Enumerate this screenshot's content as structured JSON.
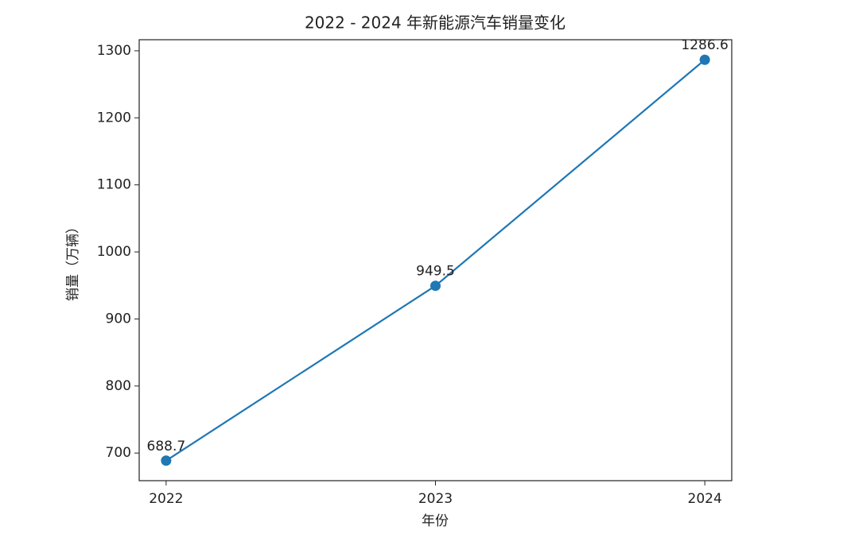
{
  "chart_data": {
    "type": "line",
    "title": "2022 - 2024 年新能源汽车销量变化",
    "x_label": "年份",
    "y_label": "销量（万辆）",
    "x": [
      2022,
      2023,
      2024
    ],
    "series": [
      {
        "name": "销量",
        "color": "#1f77b4",
        "values": [
          688.7,
          949.5,
          1286.6
        ]
      }
    ],
    "xlim": [
      2021.9,
      2024.1
    ],
    "xticks": [
      2022,
      2023,
      2024
    ],
    "ylim": [
      658.8,
      1316.5
    ],
    "yticks": [
      700,
      800,
      900,
      1000,
      1100,
      1200,
      1300
    ],
    "grid": false
  }
}
